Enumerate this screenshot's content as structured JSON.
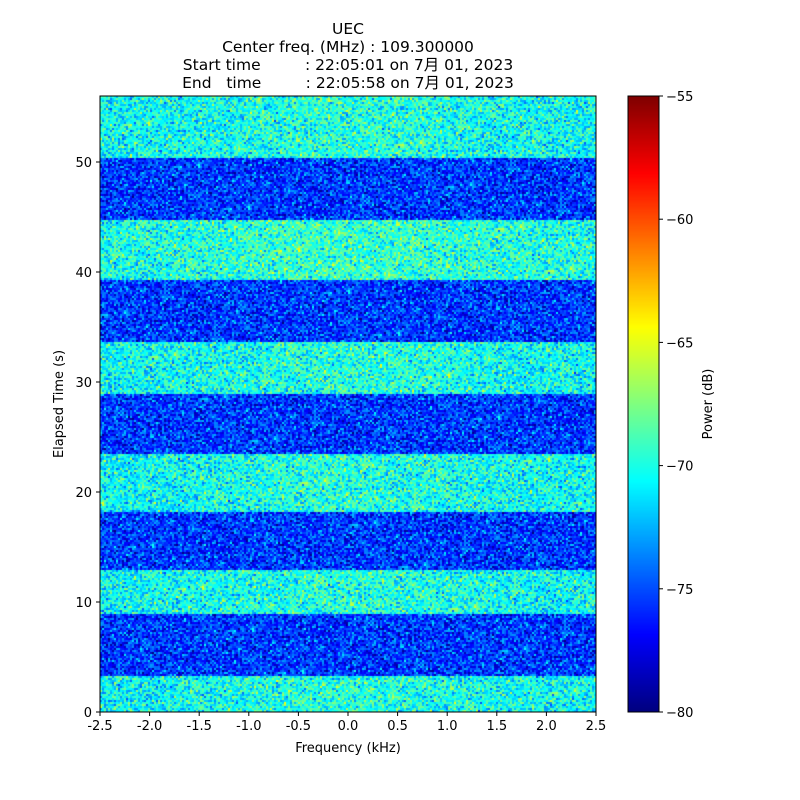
{
  "chart_data": {
    "type": "heatmap",
    "title_lines": [
      "UEC",
      "Center freq. (MHz) : 109.300000",
      "Start time         : 22:05:01 on 7月 01, 2023",
      "End   time         : 22:05:58 on 7月 01, 2023"
    ],
    "xlabel": "Frequency (kHz)",
    "ylabel": "Elapsed Time (s)",
    "xlim": [
      -2.5,
      2.5
    ],
    "ylim": [
      0,
      56
    ],
    "x_ticks": [
      -2.5,
      -2.0,
      -1.5,
      -1.0,
      -0.5,
      0.0,
      0.5,
      1.0,
      1.5,
      2.0,
      2.5
    ],
    "x_tick_labels": [
      "-2.5",
      "-2.0",
      "-1.5",
      "-1.0",
      "-0.5",
      "0.0",
      "0.5",
      "1.0",
      "1.5",
      "2.0",
      "2.5"
    ],
    "y_ticks": [
      0,
      10,
      20,
      30,
      40,
      50
    ],
    "y_tick_labels": [
      "0",
      "10",
      "20",
      "30",
      "40",
      "50"
    ],
    "colorbar": {
      "label": "Power (dB)",
      "colormap": "jet",
      "range": [
        -80,
        -55
      ],
      "ticks": [
        -80,
        -75,
        -70,
        -65,
        -60,
        -55
      ],
      "tick_labels": [
        "−80",
        "−75",
        "−70",
        "−65",
        "−60",
        "−55"
      ]
    },
    "bands_note": "alternating higher-power (signal) and lower-power (background) time bands",
    "bands": [
      {
        "t_start": 0.0,
        "t_end": 3.3,
        "level": "high",
        "mean_db": -70.5
      },
      {
        "t_start": 3.3,
        "t_end": 9.0,
        "level": "low",
        "mean_db": -75.5
      },
      {
        "t_start": 9.0,
        "t_end": 13.0,
        "level": "high",
        "mean_db": -70.5
      },
      {
        "t_start": 13.0,
        "t_end": 18.3,
        "level": "low",
        "mean_db": -75.5
      },
      {
        "t_start": 18.3,
        "t_end": 23.5,
        "level": "high",
        "mean_db": -70.5
      },
      {
        "t_start": 23.5,
        "t_end": 29.0,
        "level": "low",
        "mean_db": -75.5
      },
      {
        "t_start": 29.0,
        "t_end": 33.8,
        "level": "high",
        "mean_db": -70.5
      },
      {
        "t_start": 33.8,
        "t_end": 39.4,
        "level": "low",
        "mean_db": -75.5
      },
      {
        "t_start": 39.4,
        "t_end": 44.8,
        "level": "high",
        "mean_db": -70.0
      },
      {
        "t_start": 44.8,
        "t_end": 50.5,
        "level": "low",
        "mean_db": -75.5
      },
      {
        "t_start": 50.5,
        "t_end": 56.0,
        "level": "high",
        "mean_db": -70.5
      }
    ]
  }
}
